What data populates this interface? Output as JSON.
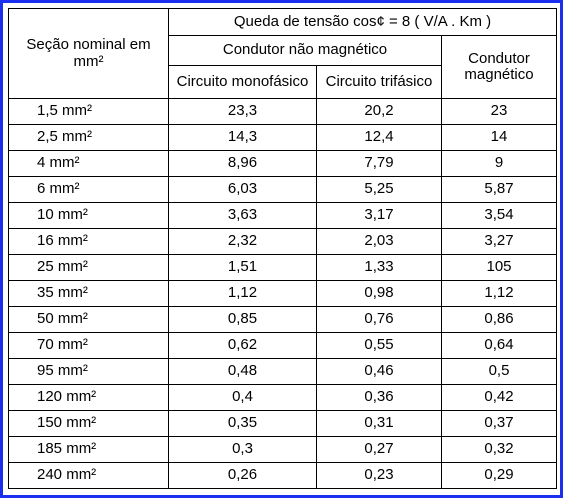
{
  "header": {
    "section_label": "Seção nominal em mm²",
    "voltage_drop": "Queda de tensão cos¢ =  8  ( V/A . Km )",
    "non_magnetic": "Condutor não magnético",
    "single_phase": "Circuito monofásico",
    "three_phase": "Circuito trifásico",
    "magnetic": "Condutor magnético"
  },
  "rows": [
    {
      "section": "1,5 mm²",
      "mono": "23,3",
      "tri": "20,2",
      "mag": "23"
    },
    {
      "section": "2,5 mm²",
      "mono": "14,3",
      "tri": "12,4",
      "mag": "14"
    },
    {
      "section": "4 mm²",
      "mono": "8,96",
      "tri": "7,79",
      "mag": "9"
    },
    {
      "section": "6 mm²",
      "mono": "6,03",
      "tri": "5,25",
      "mag": "5,87"
    },
    {
      "section": "10 mm²",
      "mono": "3,63",
      "tri": "3,17",
      "mag": "3,54"
    },
    {
      "section": "16 mm²",
      "mono": "2,32",
      "tri": "2,03",
      "mag": "3,27"
    },
    {
      "section": "25 mm²",
      "mono": "1,51",
      "tri": "1,33",
      "mag": "105"
    },
    {
      "section": "35 mm²",
      "mono": "1,12",
      "tri": "0,98",
      "mag": "1,12"
    },
    {
      "section": "50 mm²",
      "mono": "0,85",
      "tri": "0,76",
      "mag": "0,86"
    },
    {
      "section": "70 mm²",
      "mono": "0,62",
      "tri": "0,55",
      "mag": "0,64"
    },
    {
      "section": "95 mm²",
      "mono": "0,48",
      "tri": "0,46",
      "mag": "0,5"
    },
    {
      "section": "120 mm²",
      "mono": "0,4",
      "tri": "0,36",
      "mag": "0,42"
    },
    {
      "section": "150 mm²",
      "mono": "0,35",
      "tri": "0,31",
      "mag": "0,37"
    },
    {
      "section": "185 mm²",
      "mono": "0,3",
      "tri": "0,27",
      "mag": "0,32"
    },
    {
      "section": "240 mm²",
      "mono": "0,26",
      "tri": "0,23",
      "mag": "0,29"
    }
  ]
}
